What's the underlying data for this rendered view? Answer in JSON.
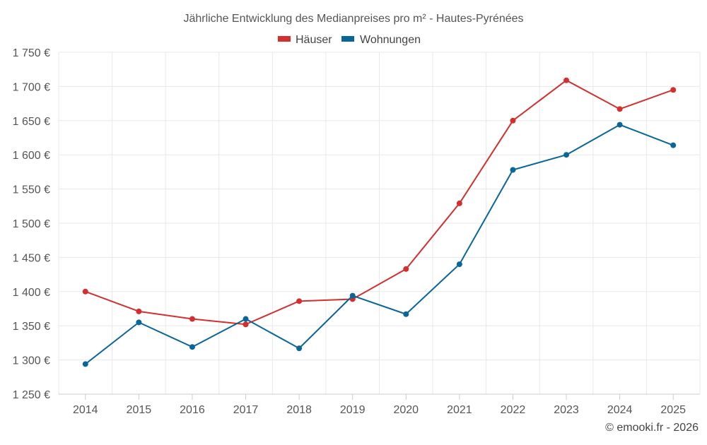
{
  "chart_data": {
    "type": "line",
    "title": "Jährliche Entwicklung des Medianpreises pro m² - Hautes-Pyrénées",
    "categories": [
      "2014",
      "2015",
      "2016",
      "2017",
      "2018",
      "2019",
      "2020",
      "2021",
      "2022",
      "2023",
      "2024",
      "2025"
    ],
    "series": [
      {
        "name": "Häuser",
        "color": "#d32f2f",
        "values": [
          1400,
          1371,
          1360,
          1352,
          1386,
          1389,
          1433,
          1529,
          1650,
          1709,
          1667,
          1695
        ]
      },
      {
        "name": "Wohnungen",
        "color": "#0a6699",
        "values": [
          1294,
          1355,
          1319,
          1360,
          1317,
          1394,
          1367,
          1440,
          1578,
          1600,
          1644,
          1614
        ]
      }
    ],
    "yaxis": {
      "min": 1250,
      "max": 1750,
      "ticks": [
        1250,
        1300,
        1350,
        1400,
        1450,
        1500,
        1550,
        1600,
        1650,
        1700,
        1750
      ],
      "tick_labels": [
        "1 250 €",
        "1 300 €",
        "1 350 €",
        "1 400 €",
        "1 450 €",
        "1 500 €",
        "1 550 €",
        "1 600 €",
        "1 650 €",
        "1 700 €",
        "1 750 €"
      ]
    },
    "xlabel": "",
    "ylabel": "",
    "grid": true,
    "legend_position": "top-center"
  },
  "credit": "© emooki.fr - 2026"
}
